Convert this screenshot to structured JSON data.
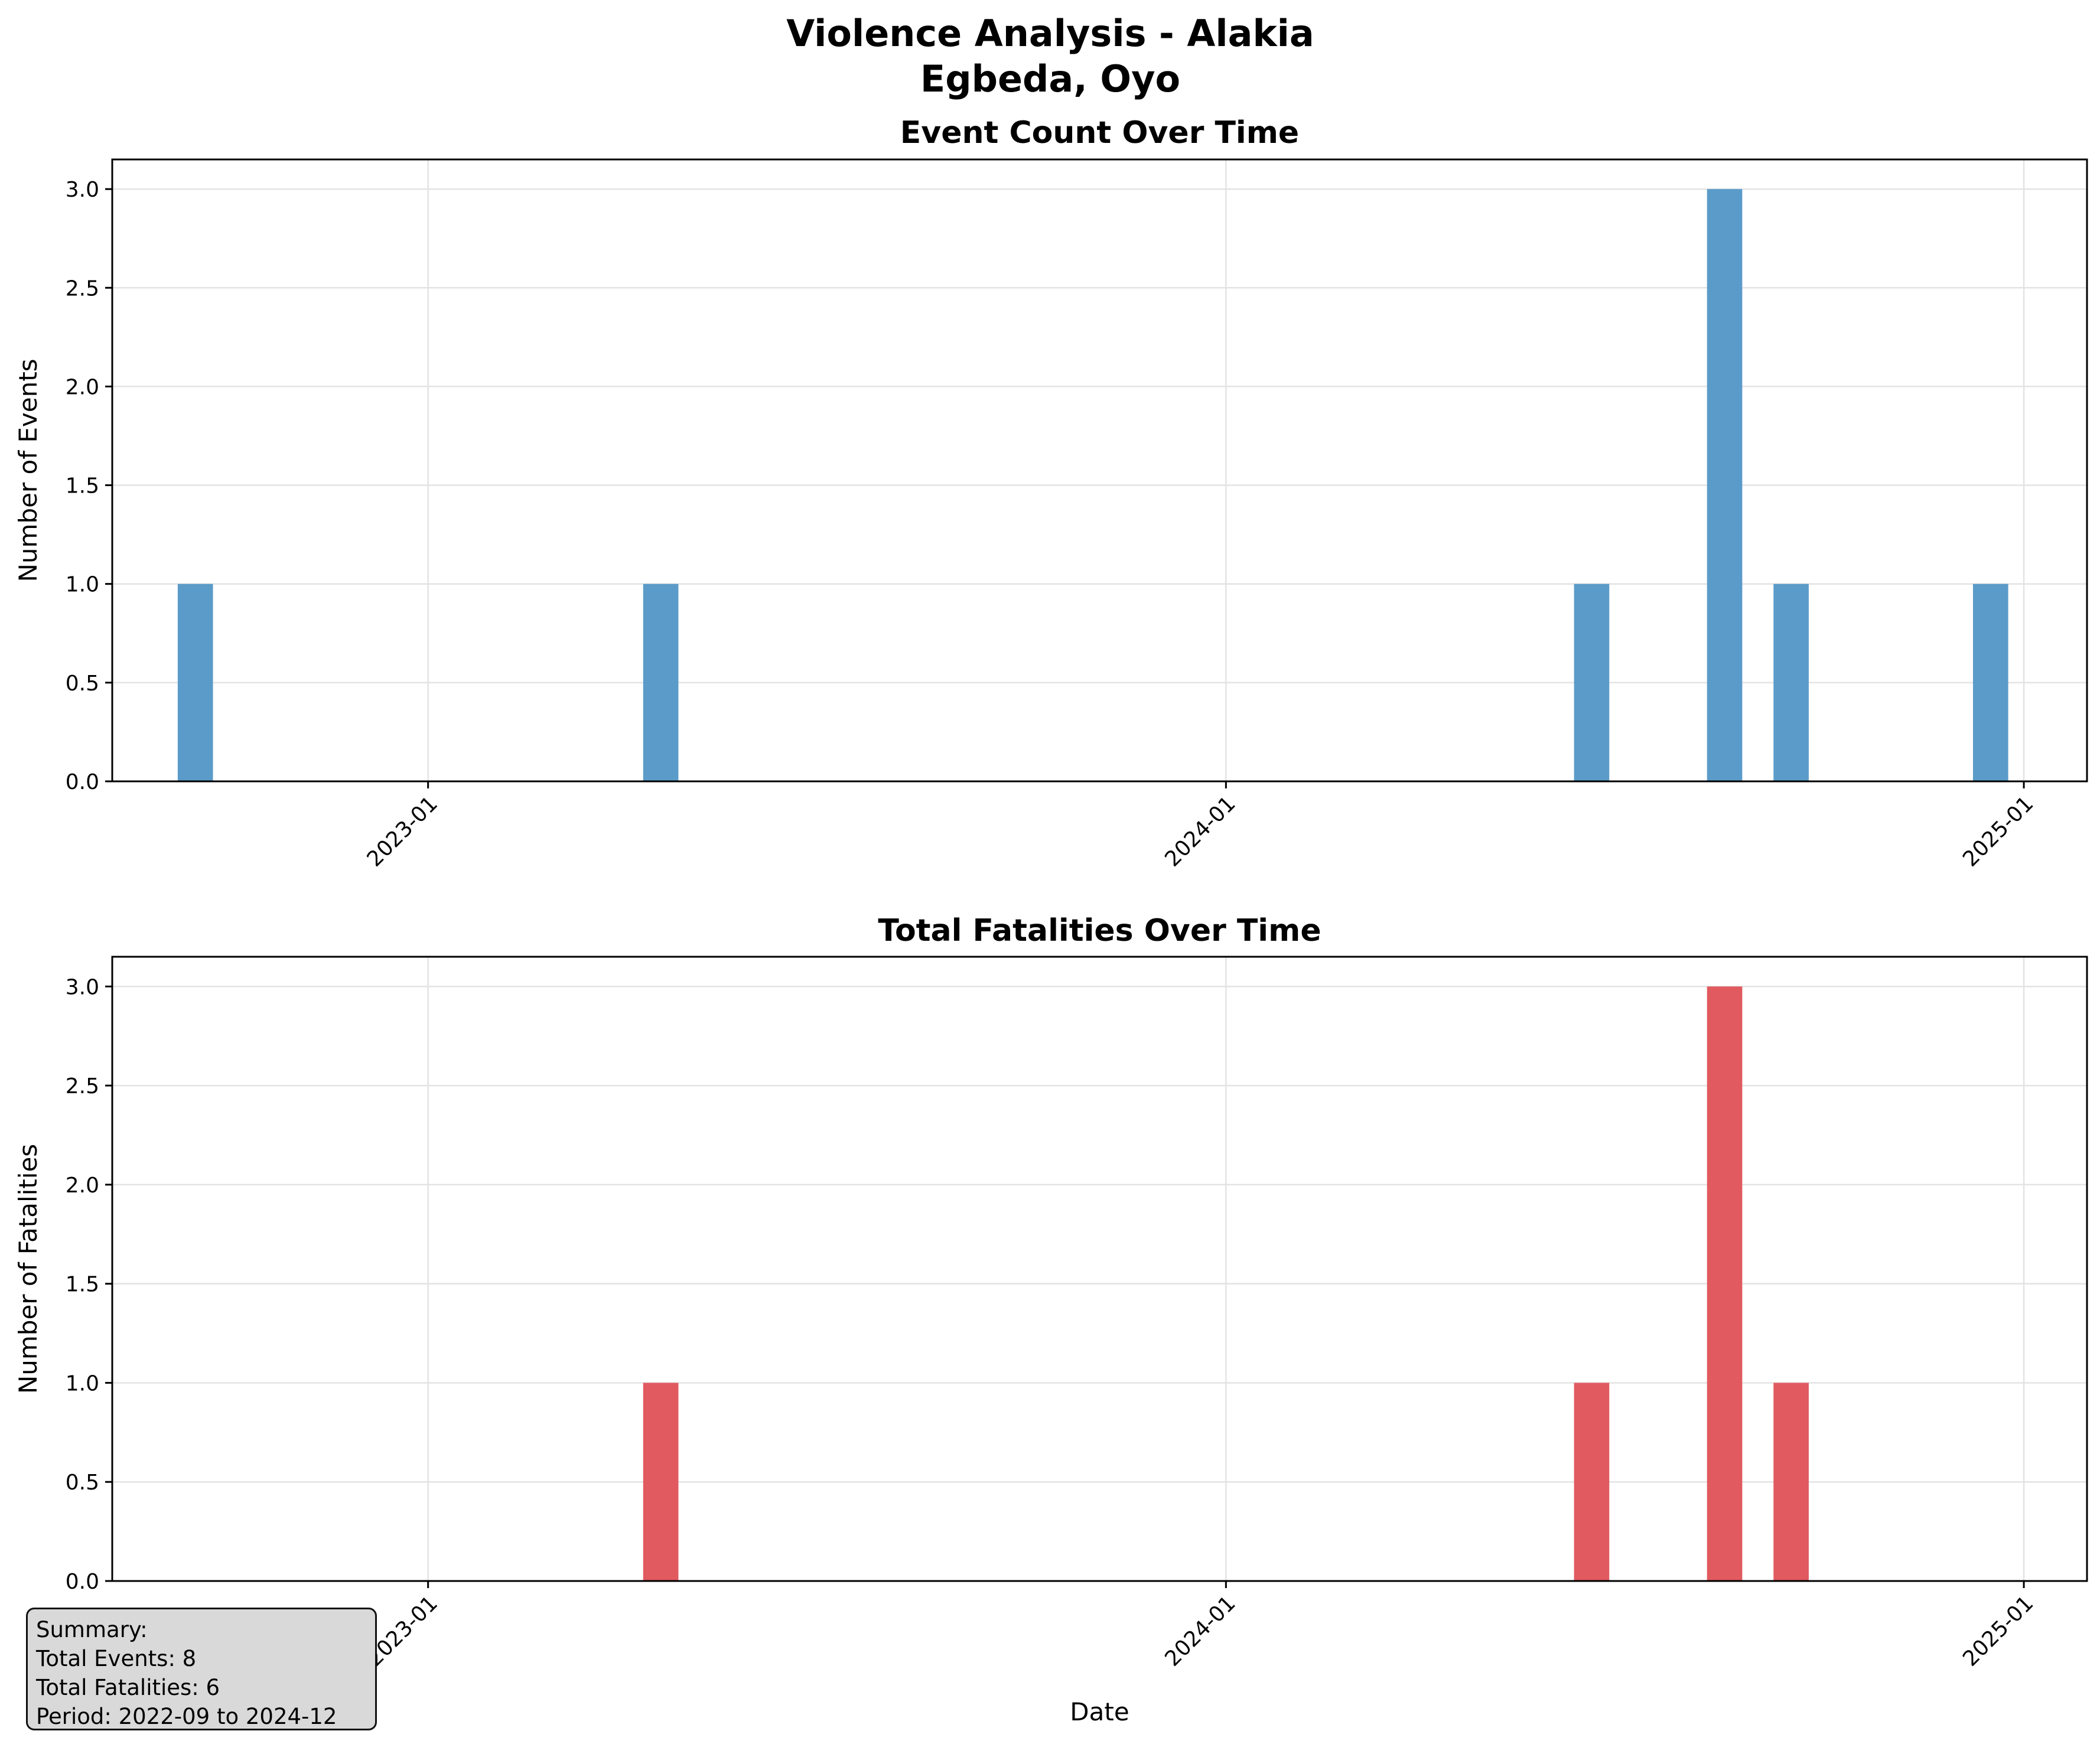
{
  "figure": {
    "title_line1": "Violence Analysis - Alakia",
    "title_line2": "Egbeda, Oyo"
  },
  "chart_data": [
    {
      "type": "bar",
      "title": "Event Count Over Time",
      "xlabel": "",
      "ylabel": "Number of Events",
      "x": [
        "2022-09",
        "2023-04",
        "2024-06",
        "2024-08",
        "2024-09",
        "2024-12"
      ],
      "values": [
        1,
        1,
        1,
        3,
        1,
        1
      ],
      "ylim": [
        0,
        3.15
      ],
      "xlim": [
        "2022-08",
        "2025-01"
      ],
      "yticks": [
        "0.0",
        "0.5",
        "1.0",
        "1.5",
        "2.0",
        "2.5",
        "3.0"
      ],
      "xticks": [
        "2023-01",
        "2024-01",
        "2025-01"
      ],
      "grid": true,
      "color": "#5b9bc9"
    },
    {
      "type": "bar",
      "title": "Total Fatalities Over Time",
      "xlabel": "Date",
      "ylabel": "Number of Fatalities",
      "x": [
        "2022-09",
        "2023-04",
        "2024-06",
        "2024-08",
        "2024-09",
        "2024-12"
      ],
      "values": [
        0,
        1,
        1,
        3,
        1,
        0
      ],
      "ylim": [
        0,
        3.15
      ],
      "xlim": [
        "2022-08",
        "2025-01"
      ],
      "yticks": [
        "0.0",
        "0.5",
        "1.0",
        "1.5",
        "2.0",
        "2.5",
        "3.0"
      ],
      "xticks": [
        "2023-01",
        "2024-01",
        "2025-01"
      ],
      "grid": true,
      "color": "#e05a5f"
    }
  ],
  "summary": {
    "heading": "Summary:",
    "total_events": "Total Events: 8",
    "total_fatalities": "Total Fatalities: 6",
    "period": "Period: 2022-09 to 2024-12"
  }
}
